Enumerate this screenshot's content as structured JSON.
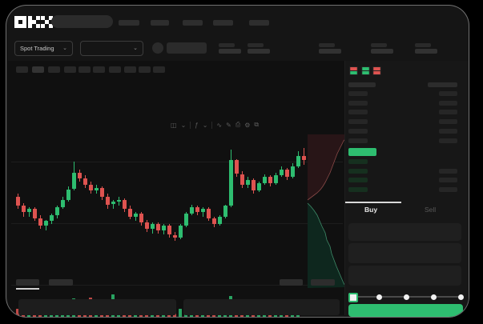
{
  "brand": {
    "logo_text": "OKX",
    "logo_glyphs": [
      [
        [
          1,
          1,
          1
        ],
        [
          1,
          0,
          1
        ],
        [
          1,
          1,
          1
        ]
      ],
      [
        [
          1,
          0,
          1
        ],
        [
          1,
          1,
          0
        ],
        [
          1,
          0,
          1
        ]
      ],
      [
        [
          1,
          0,
          1
        ],
        [
          0,
          1,
          0
        ],
        [
          1,
          0,
          1
        ]
      ]
    ]
  },
  "header": {
    "nav_item_widths": [
      26,
      23,
      25,
      25,
      25
    ]
  },
  "subheader": {
    "market_selector_label": "Spot Trading",
    "chevron": "⌄",
    "stat_groups_x": [
      265,
      301,
      390,
      455,
      510
    ]
  },
  "toolbar": {
    "timeframes_x": [
      10,
      30,
      50,
      70,
      88,
      106,
      126,
      145,
      163,
      181
    ],
    "icons": [
      {
        "name": "chart-type-icon",
        "glyph": "◫"
      },
      {
        "name": "chevron-down-icon",
        "glyph": "⌄"
      },
      {
        "name": "divider",
        "glyph": "|"
      },
      {
        "name": "indicators-icon",
        "glyph": "ƒ"
      },
      {
        "name": "chevron-down-icon",
        "glyph": "⌄"
      },
      {
        "name": "divider",
        "glyph": "|"
      },
      {
        "name": "line-style-icon",
        "glyph": "∿"
      },
      {
        "name": "draw-icon",
        "glyph": "✎"
      },
      {
        "name": "screenshot-icon",
        "glyph": "⎙"
      },
      {
        "name": "settings-icon",
        "glyph": "⚙"
      },
      {
        "name": "fullscreen-icon",
        "glyph": "⧉"
      }
    ]
  },
  "colors": {
    "up": "#2ebd70",
    "down": "#de5350",
    "depth_ask_fill": "#281517",
    "depth_ask_line": "#8a4a48",
    "depth_bid_fill": "#0e271e",
    "depth_bid_line": "#3e8a68",
    "bid_row_tint": "#16last",
    "price_highlight": "#2ebd70"
  },
  "chart_data": {
    "type": "candlestick",
    "title": "",
    "xlabel": "",
    "ylabel": "",
    "ylim": [
      0,
      100
    ],
    "grid": "horizontal",
    "gridlines_p": [
      83.2,
      42.6,
      2.1
    ],
    "candles": [
      [
        60,
        62,
        52,
        54
      ],
      [
        54,
        56,
        47,
        50
      ],
      [
        50,
        53,
        47,
        52
      ],
      [
        52,
        53,
        44,
        46
      ],
      [
        46,
        48,
        39,
        41
      ],
      [
        41,
        45,
        38,
        44
      ],
      [
        44,
        49,
        42,
        48
      ],
      [
        48,
        54,
        46,
        53
      ],
      [
        53,
        60,
        52,
        58
      ],
      [
        58,
        67,
        57,
        65
      ],
      [
        65,
        83,
        64,
        76
      ],
      [
        76,
        78,
        70,
        72
      ],
      [
        72,
        74,
        66,
        68
      ],
      [
        68,
        70,
        62,
        64
      ],
      [
        64,
        68,
        62,
        66
      ],
      [
        66,
        67,
        58,
        60
      ],
      [
        60,
        62,
        52,
        55
      ],
      [
        55,
        58,
        52,
        57
      ],
      [
        57,
        60,
        54,
        58
      ],
      [
        58,
        59,
        50,
        52
      ],
      [
        52,
        54,
        45,
        47
      ],
      [
        47,
        50,
        44,
        49
      ],
      [
        49,
        50,
        41,
        43
      ],
      [
        43,
        45,
        37,
        39
      ],
      [
        39,
        43,
        36,
        42
      ],
      [
        42,
        43,
        36,
        38
      ],
      [
        38,
        42,
        35,
        41
      ],
      [
        41,
        42,
        33,
        35
      ],
      [
        35,
        37,
        31,
        33
      ],
      [
        33,
        42,
        32,
        41
      ],
      [
        41,
        50,
        40,
        49
      ],
      [
        49,
        55,
        48,
        53
      ],
      [
        53,
        54,
        48,
        50
      ],
      [
        50,
        53,
        47,
        52
      ],
      [
        52,
        53,
        44,
        46
      ],
      [
        46,
        47,
        40,
        42
      ],
      [
        42,
        48,
        41,
        47
      ],
      [
        47,
        55,
        46,
        54
      ],
      [
        54,
        91,
        53,
        84
      ],
      [
        84,
        85,
        73,
        75
      ],
      [
        75,
        77,
        66,
        68
      ],
      [
        68,
        73,
        66,
        71
      ],
      [
        71,
        72,
        62,
        64
      ],
      [
        64,
        70,
        63,
        69
      ],
      [
        69,
        75,
        68,
        73
      ],
      [
        73,
        74,
        67,
        69
      ],
      [
        69,
        76,
        68,
        74
      ],
      [
        74,
        80,
        73,
        78
      ],
      [
        78,
        79,
        71,
        73
      ],
      [
        73,
        82,
        72,
        80
      ],
      [
        80,
        90,
        79,
        87
      ],
      [
        87,
        92,
        81,
        84
      ]
    ],
    "volumes": [
      45,
      38,
      52,
      40,
      55,
      42,
      60,
      48,
      70,
      78,
      85,
      72,
      80,
      88,
      65,
      58,
      62,
      100,
      55,
      48,
      52,
      45,
      58,
      50,
      62,
      55,
      48,
      68,
      52,
      45,
      72,
      78,
      60,
      52,
      58,
      48,
      42,
      55,
      95,
      68,
      52,
      42,
      58,
      45,
      52,
      60,
      40,
      35,
      45,
      30,
      22,
      14
    ],
    "depth": {
      "asks_line": [
        [
          52,
          6
        ],
        [
          46,
          12
        ],
        [
          42,
          20
        ],
        [
          38,
          28
        ],
        [
          35,
          36
        ],
        [
          32,
          44
        ],
        [
          29,
          52
        ],
        [
          26,
          58
        ],
        [
          23,
          64
        ],
        [
          20,
          69
        ],
        [
          17,
          73
        ],
        [
          13,
          77
        ],
        [
          9,
          80
        ],
        [
          5,
          83
        ],
        [
          1,
          86
        ]
      ],
      "bids_line": [
        [
          1,
          90
        ],
        [
          5,
          94
        ],
        [
          9,
          99
        ],
        [
          13,
          105
        ],
        [
          16,
          112
        ],
        [
          19,
          119
        ],
        [
          23,
          127
        ],
        [
          25,
          136
        ],
        [
          29,
          144
        ],
        [
          31,
          153
        ],
        [
          34,
          161
        ],
        [
          37,
          169
        ],
        [
          40,
          176
        ],
        [
          43,
          183
        ],
        [
          46,
          190
        ],
        [
          49,
          195
        ]
      ]
    }
  },
  "orderbook": {
    "view_toggles": [
      {
        "name": "book-combined-icon",
        "stripes": [
          "down",
          "down",
          "up",
          "up"
        ]
      },
      {
        "name": "book-bids-icon",
        "stripes": [
          "up",
          "up",
          "up",
          "up"
        ]
      },
      {
        "name": "book-asks-icon",
        "stripes": [
          "down",
          "down",
          "down",
          "down"
        ]
      }
    ],
    "ask_rows": 6,
    "bid_rows": 4,
    "bid_right_bars": [
      false,
      true,
      true,
      true
    ]
  },
  "trade_panel": {
    "buy_tab_label": "Buy",
    "sell_tab_label": "Sell",
    "input_count": 3,
    "slider": {
      "dots": 5,
      "selected_index": 0,
      "value_percent": 0
    },
    "submit_label": ""
  },
  "bottom": {
    "left_tab_widths": [
      29,
      30
    ],
    "right_bar_widths": [
      29,
      30
    ],
    "active_tab_index": 0
  }
}
